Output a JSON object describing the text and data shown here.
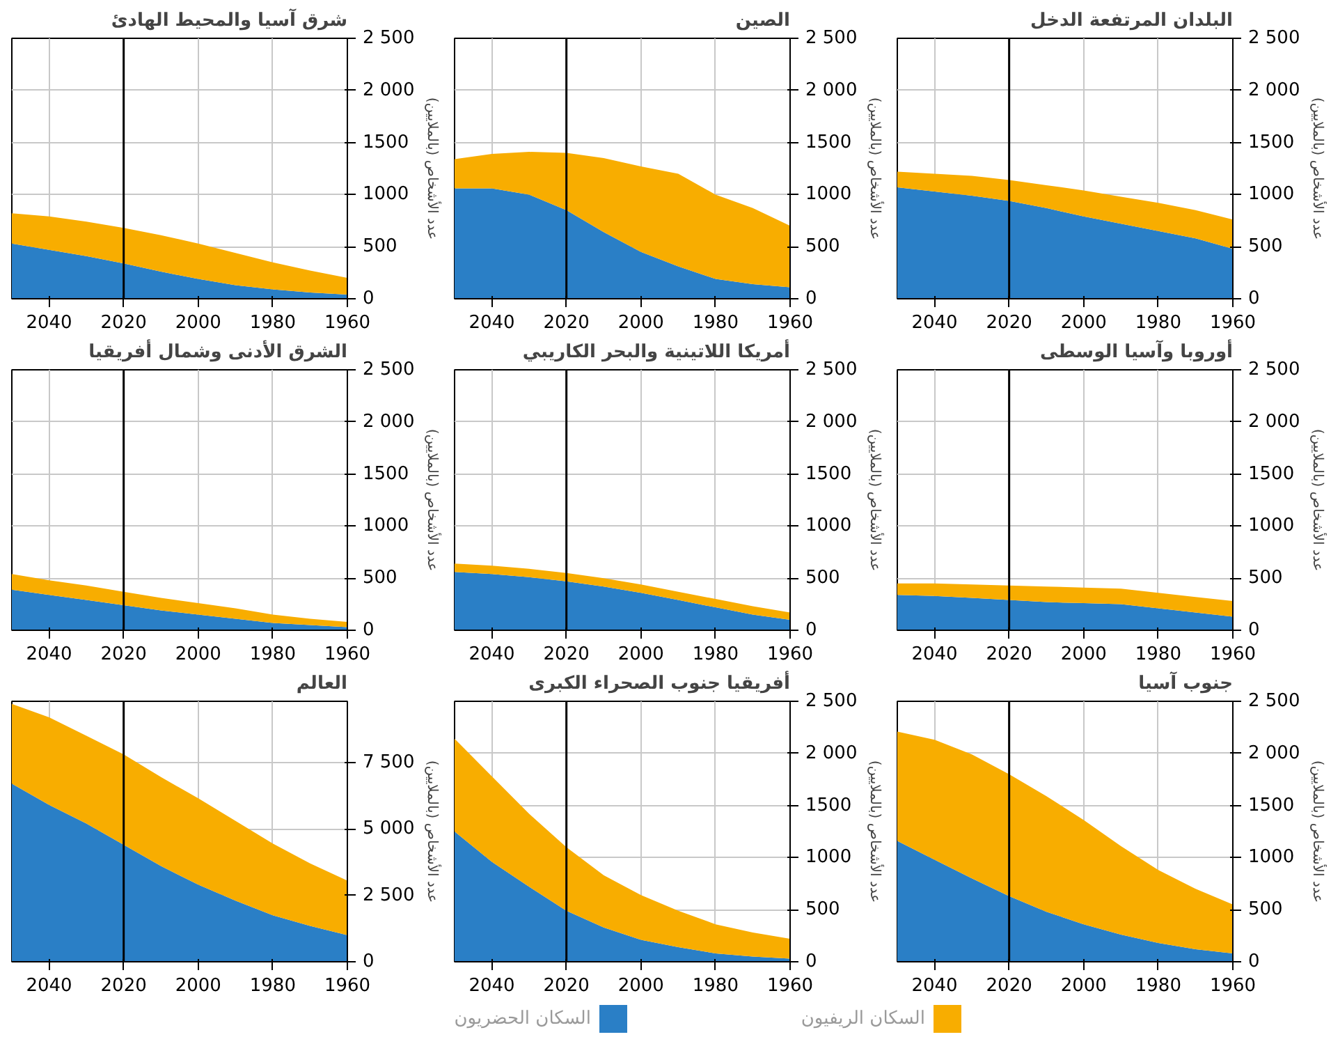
{
  "chart_data": [
    {
      "type": "area",
      "stacked": true,
      "title": "البلدان المرتفعة الدخل",
      "ylabel": "عدد الأشخاص (بالملايين)",
      "x": [
        2050,
        2040,
        2030,
        2020,
        2010,
        2000,
        1990,
        1980,
        1970,
        1960
      ],
      "xlim": [
        2050,
        1960
      ],
      "xticks": [
        2040,
        2020,
        2000,
        1980,
        1960
      ],
      "ylim": [
        0,
        2500
      ],
      "yticks": [
        0,
        500,
        1000,
        1500,
        {
          "value": 2000,
          "label": "2 000"
        },
        {
          "value": 2500,
          "label": "2 500"
        }
      ],
      "grid": true,
      "ref_lines": [
        {
          "axis": "x",
          "value": 2020,
          "color": "#000000"
        }
      ],
      "series": [
        {
          "color": "#2a7fc6",
          "values": [
            1070,
            1030,
            990,
            940,
            870,
            790,
            720,
            650,
            580,
            480
          ]
        },
        {
          "color": "#f8ad00",
          "values": [
            150,
            170,
            190,
            200,
            220,
            250,
            260,
            270,
            270,
            280
          ]
        }
      ]
    },
    {
      "type": "area",
      "stacked": true,
      "title": "الصين",
      "ylabel": "عدد الأشخاص (بالملايين)",
      "x": [
        2050,
        2040,
        2030,
        2020,
        2010,
        2000,
        1990,
        1980,
        1970,
        1960
      ],
      "xlim": [
        2050,
        1960
      ],
      "xticks": [
        2040,
        2020,
        2000,
        1980,
        1960
      ],
      "ylim": [
        0,
        2500
      ],
      "yticks": [
        0,
        500,
        1000,
        1500,
        {
          "value": 2000,
          "label": "2 000"
        },
        {
          "value": 2500,
          "label": "2 500"
        }
      ],
      "grid": true,
      "ref_lines": [
        {
          "axis": "x",
          "value": 2020,
          "color": "#000000"
        }
      ],
      "series": [
        {
          "color": "#2a7fc6",
          "values": [
            1060,
            1060,
            1000,
            850,
            640,
            450,
            310,
            190,
            140,
            110
          ]
        },
        {
          "color": "#f8ad00",
          "values": [
            280,
            330,
            410,
            550,
            710,
            820,
            890,
            810,
            730,
            590
          ]
        }
      ]
    },
    {
      "type": "area",
      "stacked": true,
      "title": "شرق آسيا والمحيط الهادئ",
      "ylabel": "عدد الأشخاص (بالملايين)",
      "x": [
        2050,
        2040,
        2030,
        2020,
        2010,
        2000,
        1990,
        1980,
        1970,
        1960
      ],
      "xlim": [
        2050,
        1960
      ],
      "xticks": [
        2040,
        2020,
        2000,
        1980,
        1960
      ],
      "ylim": [
        0,
        2500
      ],
      "yticks": [
        0,
        500,
        1000,
        1500,
        {
          "value": 2000,
          "label": "2 000"
        },
        {
          "value": 2500,
          "label": "2 500"
        }
      ],
      "grid": true,
      "ref_lines": [
        {
          "axis": "x",
          "value": 2020,
          "color": "#000000"
        }
      ],
      "series": [
        {
          "color": "#2a7fc6",
          "values": [
            530,
            470,
            410,
            340,
            260,
            190,
            130,
            90,
            60,
            40
          ]
        },
        {
          "color": "#f8ad00",
          "values": [
            290,
            320,
            330,
            340,
            350,
            340,
            310,
            260,
            210,
            160
          ]
        }
      ]
    },
    {
      "type": "area",
      "stacked": true,
      "title": "أوروبا وآسيا الوسطى",
      "ylabel": "عدد الأشخاص (بالملايين)",
      "x": [
        2050,
        2040,
        2030,
        2020,
        2010,
        2000,
        1990,
        1980,
        1970,
        1960
      ],
      "xlim": [
        2050,
        1960
      ],
      "xticks": [
        2040,
        2020,
        2000,
        1980,
        1960
      ],
      "ylim": [
        0,
        2500
      ],
      "yticks": [
        0,
        500,
        1000,
        1500,
        {
          "value": 2000,
          "label": "2 000"
        },
        {
          "value": 2500,
          "label": "2 500"
        }
      ],
      "grid": true,
      "ref_lines": [
        {
          "axis": "x",
          "value": 2020,
          "color": "#000000"
        }
      ],
      "series": [
        {
          "color": "#2a7fc6",
          "values": [
            340,
            330,
            310,
            290,
            270,
            260,
            250,
            210,
            170,
            130
          ]
        },
        {
          "color": "#f8ad00",
          "values": [
            110,
            120,
            130,
            140,
            150,
            150,
            150,
            150,
            150,
            150
          ]
        }
      ]
    },
    {
      "type": "area",
      "stacked": true,
      "title": "أمريكا اللاتينية والبحر الكاريبي",
      "ylabel": "عدد الأشخاص (بالملايين)",
      "x": [
        2050,
        2040,
        2030,
        2020,
        2010,
        2000,
        1990,
        1980,
        1970,
        1960
      ],
      "xlim": [
        2050,
        1960
      ],
      "xticks": [
        2040,
        2020,
        2000,
        1980,
        1960
      ],
      "ylim": [
        0,
        2500
      ],
      "yticks": [
        0,
        500,
        1000,
        1500,
        {
          "value": 2000,
          "label": "2 000"
        },
        {
          "value": 2500,
          "label": "2 500"
        }
      ],
      "grid": true,
      "ref_lines": [
        {
          "axis": "x",
          "value": 2020,
          "color": "#000000"
        }
      ],
      "series": [
        {
          "color": "#2a7fc6",
          "values": [
            560,
            540,
            510,
            470,
            420,
            360,
            290,
            220,
            150,
            100
          ]
        },
        {
          "color": "#f8ad00",
          "values": [
            80,
            80,
            80,
            80,
            80,
            80,
            80,
            80,
            80,
            70
          ]
        }
      ]
    },
    {
      "type": "area",
      "stacked": true,
      "title": "الشرق الأدنى وشمال أفريقيا",
      "ylabel": "عدد الأشخاص (بالملايين)",
      "x": [
        2050,
        2040,
        2030,
        2020,
        2010,
        2000,
        1990,
        1980,
        1970,
        1960
      ],
      "xlim": [
        2050,
        1960
      ],
      "xticks": [
        2040,
        2020,
        2000,
        1980,
        1960
      ],
      "ylim": [
        0,
        2500
      ],
      "yticks": [
        0,
        500,
        1000,
        1500,
        {
          "value": 2000,
          "label": "2 000"
        },
        {
          "value": 2500,
          "label": "2 500"
        }
      ],
      "grid": true,
      "ref_lines": [
        {
          "axis": "x",
          "value": 2020,
          "color": "#000000"
        }
      ],
      "series": [
        {
          "color": "#2a7fc6",
          "values": [
            390,
            340,
            290,
            240,
            190,
            150,
            110,
            70,
            50,
            30
          ]
        },
        {
          "color": "#f8ad00",
          "values": [
            150,
            140,
            140,
            130,
            120,
            110,
            100,
            80,
            60,
            50
          ]
        }
      ]
    },
    {
      "type": "area",
      "stacked": true,
      "title": "جنوب آسيا",
      "ylabel": "عدد الأشخاص (بالملايين)",
      "x": [
        2050,
        2040,
        2030,
        2020,
        2010,
        2000,
        1990,
        1980,
        1970,
        1960
      ],
      "xlim": [
        2050,
        1960
      ],
      "xticks": [
        2040,
        2020,
        2000,
        1980,
        1960
      ],
      "ylim": [
        0,
        2500
      ],
      "yticks": [
        0,
        500,
        1000,
        1500,
        {
          "value": 2000,
          "label": "2 000"
        },
        {
          "value": 2500,
          "label": "2 500"
        }
      ],
      "grid": true,
      "ref_lines": [
        {
          "axis": "x",
          "value": 2020,
          "color": "#000000"
        }
      ],
      "series": [
        {
          "color": "#2a7fc6",
          "values": [
            1160,
            980,
            800,
            630,
            480,
            360,
            260,
            180,
            120,
            80
          ]
        },
        {
          "color": "#f8ad00",
          "values": [
            1050,
            1150,
            1190,
            1170,
            1110,
            1000,
            850,
            700,
            580,
            470
          ]
        }
      ]
    },
    {
      "type": "area",
      "stacked": true,
      "title": "أفريقيا جنوب الصحراء الكبرى",
      "ylabel": "عدد الأشخاص (بالملايين)",
      "x": [
        2050,
        2040,
        2030,
        2020,
        2010,
        2000,
        1990,
        1980,
        1970,
        1960
      ],
      "xlim": [
        2050,
        1960
      ],
      "xticks": [
        2040,
        2020,
        2000,
        1980,
        1960
      ],
      "ylim": [
        0,
        2500
      ],
      "yticks": [
        0,
        500,
        1000,
        1500,
        {
          "value": 2000,
          "label": "2 000"
        },
        {
          "value": 2500,
          "label": "2 500"
        }
      ],
      "grid": true,
      "ref_lines": [
        {
          "axis": "x",
          "value": 2020,
          "color": "#000000"
        }
      ],
      "series": [
        {
          "color": "#2a7fc6",
          "values": [
            1250,
            960,
            720,
            490,
            330,
            210,
            140,
            80,
            50,
            30
          ]
        },
        {
          "color": "#f8ad00",
          "values": [
            890,
            820,
            700,
            610,
            500,
            430,
            350,
            280,
            230,
            190
          ]
        }
      ]
    },
    {
      "type": "area",
      "stacked": true,
      "title": "العالم",
      "ylabel": "عدد الأشخاص (بالملايين)",
      "x": [
        2050,
        2040,
        2030,
        2020,
        2010,
        2000,
        1990,
        1980,
        1970,
        1960
      ],
      "xlim": [
        2050,
        1960
      ],
      "xticks": [
        2040,
        2020,
        2000,
        1980,
        1960
      ],
      "ylim": [
        0,
        9800
      ],
      "yticks": [
        0,
        {
          "value": 2500,
          "label": "2 500"
        },
        {
          "value": 5000,
          "label": "5 000"
        },
        {
          "value": 7500,
          "label": "7 500"
        }
      ],
      "grid": true,
      "ref_lines": [
        {
          "axis": "x",
          "value": 2020,
          "color": "#000000"
        }
      ],
      "legend": "bottom",
      "series": [
        {
          "name": "السكان الحضريون",
          "color": "#2a7fc6",
          "values": [
            6700,
            5900,
            5200,
            4400,
            3600,
            2900,
            2300,
            1750,
            1350,
            1000
          ]
        },
        {
          "name": "السكان الريفيون",
          "color": "#f8ad00",
          "values": [
            3000,
            3300,
            3300,
            3400,
            3350,
            3250,
            3000,
            2700,
            2350,
            2050
          ]
        }
      ]
    }
  ]
}
